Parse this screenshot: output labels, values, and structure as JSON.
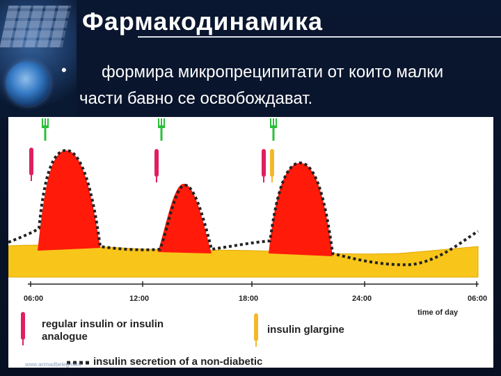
{
  "slide": {
    "title": "Фармакодинамика",
    "bullet": "•",
    "bullet_line1": "формира микропреципитати от които малки",
    "bullet_line2": "части бавно се освобождават."
  },
  "figure": {
    "x_ticks": [
      "06:00",
      "12:00",
      "18:00",
      "24:00",
      "06:00"
    ],
    "x_axis_title": "time of day",
    "legend": {
      "regular": [
        "regular insulin or insulin",
        "analogue"
      ],
      "glargine": "insulin glargine",
      "nondiabetic": "insulin secretion of a non-diabetic"
    },
    "watermark": "www.anmadbeleg.com",
    "colors": {
      "bolus": "#ff1a0a",
      "basal": "#f8c51a",
      "fork": "#2bbf3a",
      "pen_regular": "#e0205e",
      "pen_glargine": "#f5b82a"
    },
    "icons": [
      "fork-icon",
      "insulin-pen-icon"
    ]
  }
}
